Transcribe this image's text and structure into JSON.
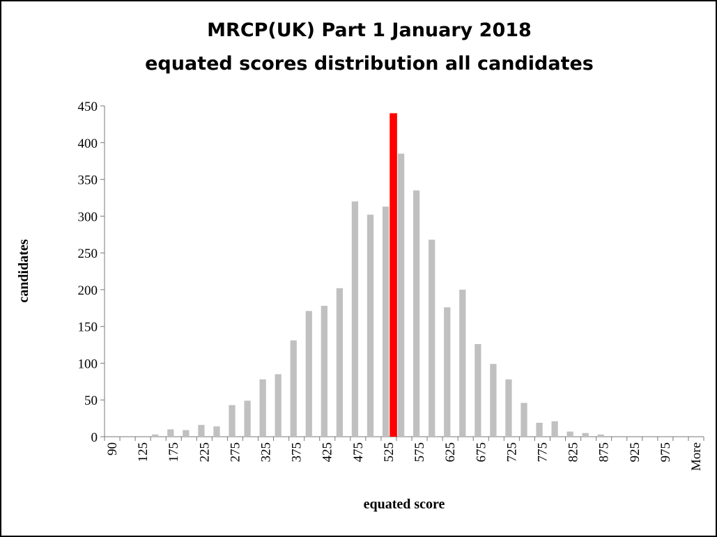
{
  "chart_data": {
    "type": "bar",
    "title_lines": [
      "MRCP(UK) Part 1 January 2018",
      "equated scores distribution all candidates"
    ],
    "x_label": "equated score",
    "y_label": "candidates",
    "categories": [
      "90",
      null,
      "125",
      null,
      "175",
      null,
      "225",
      null,
      "275",
      null,
      "325",
      null,
      "375",
      null,
      "425",
      null,
      "475",
      null,
      "525",
      null,
      "575",
      null,
      "625",
      null,
      "675",
      null,
      "725",
      null,
      "775",
      null,
      "825",
      null,
      "875",
      null,
      "925",
      null,
      "975",
      null,
      "More"
    ],
    "series": [
      {
        "color": "#c0c0c0",
        "values": [
          0,
          0,
          0,
          3,
          10,
          9,
          16,
          14,
          43,
          49,
          78,
          85,
          131,
          171,
          178,
          202,
          320,
          302,
          313,
          385,
          335,
          268,
          176,
          200,
          126,
          99,
          78,
          46,
          19,
          21,
          7,
          5,
          3,
          0,
          0,
          0,
          0,
          0,
          0
        ]
      },
      {
        "color": "#ff0000",
        "values": [
          null,
          null,
          null,
          null,
          null,
          null,
          null,
          null,
          null,
          null,
          null,
          null,
          null,
          null,
          null,
          null,
          null,
          null,
          440,
          null,
          null,
          null,
          null,
          null,
          null,
          null,
          null,
          null,
          null,
          null,
          null,
          null,
          null,
          null,
          null,
          null,
          null,
          null,
          null
        ]
      }
    ],
    "ylim": [
      0,
      450
    ],
    "yticks": [
      0,
      50,
      100,
      150,
      200,
      250,
      300,
      350,
      400,
      450
    ],
    "grid": false
  }
}
